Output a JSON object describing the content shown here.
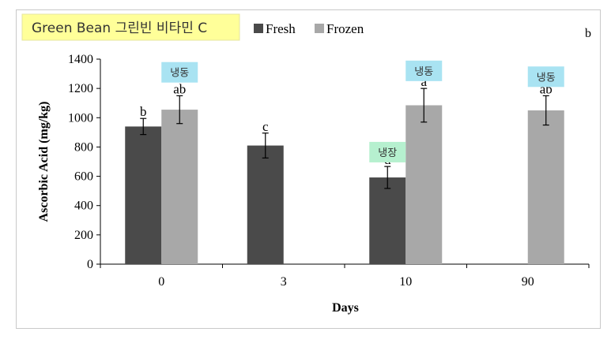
{
  "chart_data": {
    "type": "bar",
    "title": "Green Bean 그린빈 비타민 C",
    "panel_label": "b",
    "xlabel": "Days",
    "ylabel": "Ascorbic Acid (mg/kg)",
    "ylim": [
      0,
      1400
    ],
    "yticks": [
      0,
      200,
      400,
      600,
      800,
      1000,
      1200,
      1400
    ],
    "categories": [
      "0",
      "3",
      "10",
      "90"
    ],
    "legend_position": "top",
    "grid": false,
    "series": [
      {
        "name": "Fresh",
        "color": "#4a4a4a",
        "values": [
          940,
          810,
          592,
          null
        ],
        "errors": [
          55,
          85,
          75,
          null
        ],
        "letters": [
          "b",
          "c",
          "d",
          null
        ]
      },
      {
        "name": "Frozen",
        "color": "#a8a8a8",
        "values": [
          1055,
          null,
          1085,
          1050
        ],
        "errors": [
          95,
          null,
          115,
          100
        ],
        "letters": [
          "ab",
          null,
          "a",
          "ab"
        ]
      }
    ],
    "annotations": [
      {
        "text": "냉동",
        "category": "0",
        "series": "Frozen",
        "value": 1310,
        "color": "#a9e3f2"
      },
      {
        "text": "냉동",
        "category": "10",
        "series": "Frozen",
        "value": 1320,
        "color": "#a9e3f2"
      },
      {
        "text": "냉동",
        "category": "90",
        "series": "Frozen",
        "value": 1280,
        "color": "#a9e3f2"
      },
      {
        "text": "냉장",
        "category": "10",
        "series": "Fresh",
        "value": 765,
        "color": "#b6f0cf"
      }
    ]
  }
}
